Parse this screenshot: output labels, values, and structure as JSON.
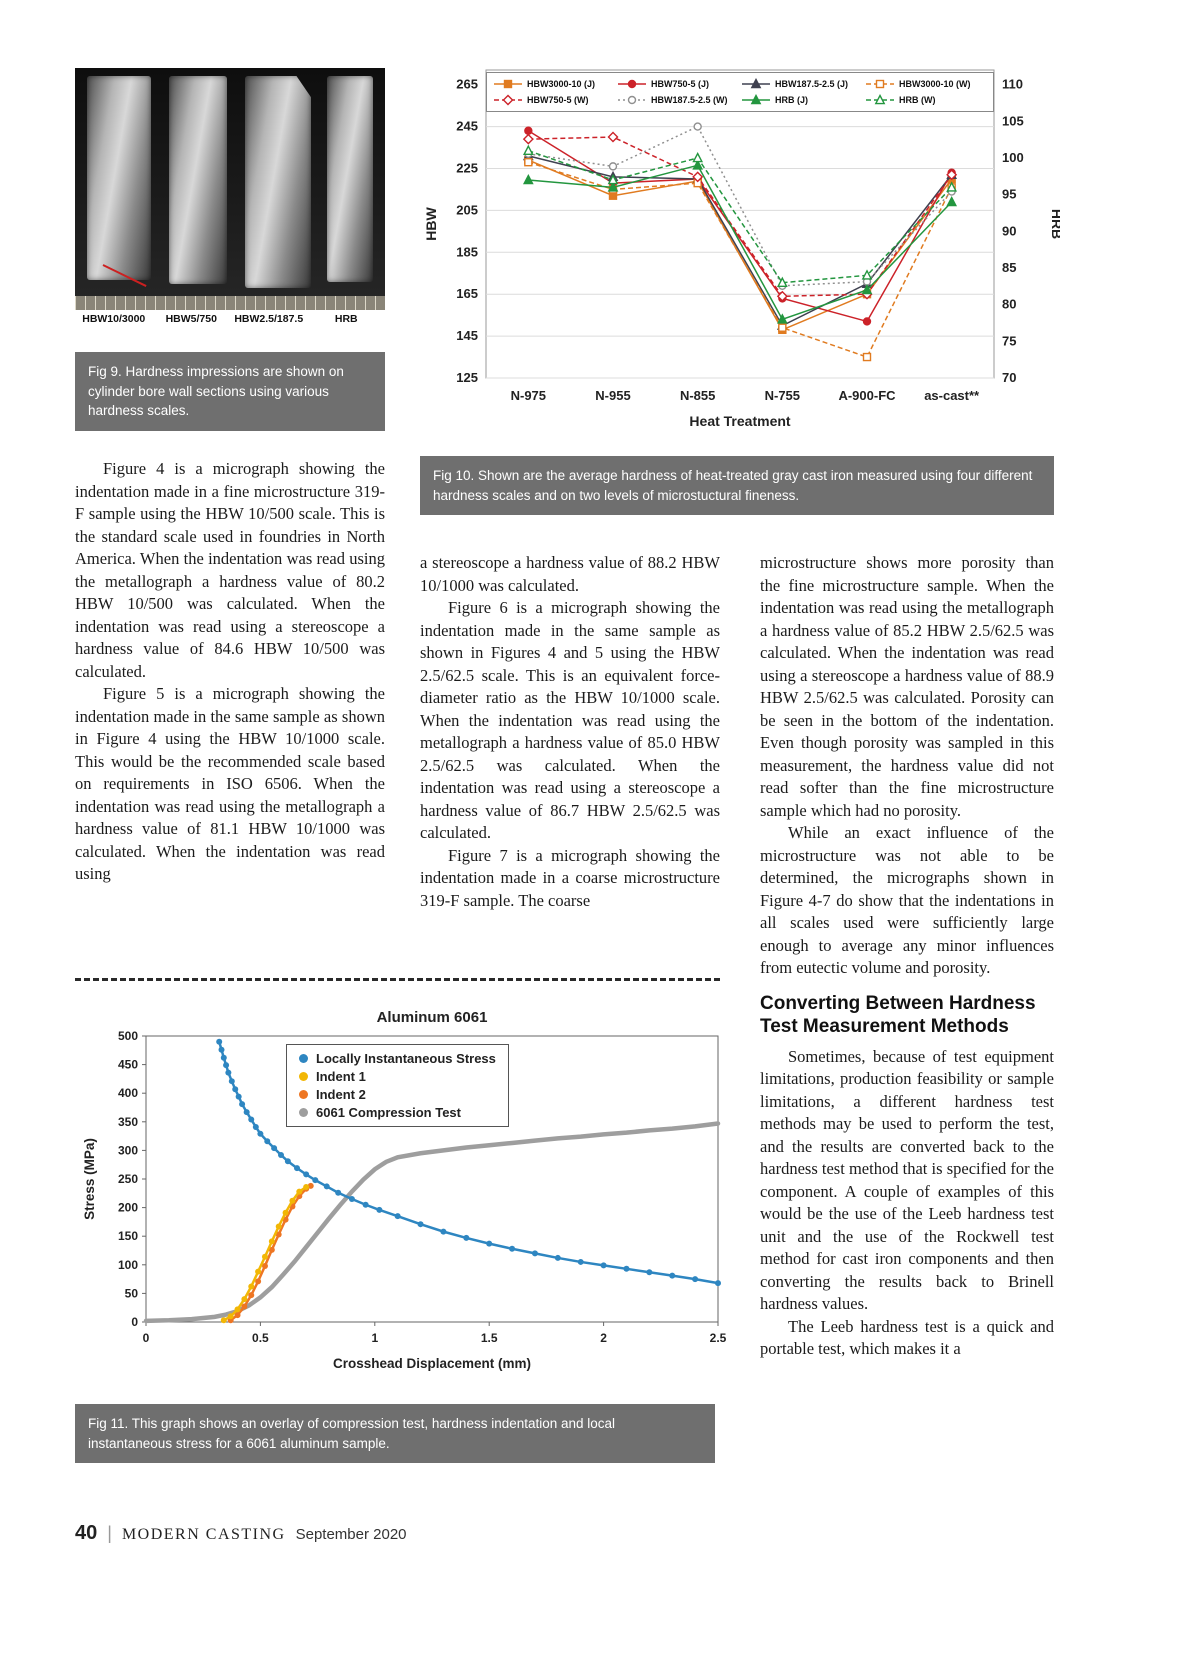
{
  "page": {
    "footer_page": "40",
    "footer_bar": "|",
    "footer_title": "MODERN CASTING",
    "footer_date": "September 2020"
  },
  "fig9": {
    "caption": "Fig 9. Hardness impressions are shown on cylinder bore wall sections using various hardness scales.",
    "labels": [
      "HBW10/3000",
      "HBW5/750",
      "HBW2.5/187.5",
      "HRB"
    ]
  },
  "fig10": {
    "caption": "Fig 10. Shown are the average hardness of heat-treated gray cast iron measured using four different hardness scales and on two levels of microstuctural fineness."
  },
  "fig11": {
    "caption": "Fig 11. This graph shows an overlay of compression test, hardness indentation and local instantaneous stress for a 6061 aluminum sample."
  },
  "article": {
    "col1": [
      {
        "indent": true,
        "text": "Figure 4 is a micrograph showing the indentation made in a fine microstructure 319-F sample using the HBW 10/500 scale. This is the standard scale used in foundries in North America. When the indentation was read using the metallograph a hardness value of 80.2 HBW 10/500 was calculated. When the indentation was read using a stereoscope a hardness value of 84.6 HBW 10/500 was calculated."
      },
      {
        "indent": true,
        "text": "Figure 5 is a micrograph showing the indentation made in the same sample as shown in Figure 4 using the HBW 10/1000 scale. This would be the recommended scale based on requirements in ISO 6506. When the indentation was read using the metallograph a hardness value of 81.1 HBW 10/1000 was calculated. When the indentation was read using"
      }
    ],
    "col2": [
      {
        "indent": false,
        "text": "a stereoscope a hardness value of 88.2 HBW 10/1000 was calculated."
      },
      {
        "indent": true,
        "text": "Figure 6 is a micrograph showing the indentation made in the same sample as shown in Figures 4 and 5 using the HBW 2.5/62.5 scale. This is an equivalent force-diameter ratio as the HBW 10/1000 scale. When the indentation was read using the metallograph a hardness value of 85.0 HBW 2.5/62.5 was calculated. When the indentation was read using a stereoscope a hardness value of 86.7 HBW 2.5/62.5 was calculated."
      },
      {
        "indent": true,
        "text": "Figure 7 is a micrograph showing the indentation made in a coarse microstructure 319-F sample. The coarse"
      }
    ],
    "col3_before_heading": [
      {
        "indent": false,
        "text": "microstructure shows more porosity than the fine microstructure sample. When the indentation was read using the metallograph a hardness value of 85.2 HBW 2.5/62.5 was calculated. When the indentation was read using a stereoscope a hardness value of 88.9 HBW 2.5/62.5 was calculated. Porosity can be seen in the bottom of the indentation. Even though porosity was sampled in this measurement, the hardness value did not read softer than the fine microstructure sample which had no porosity."
      },
      {
        "indent": true,
        "text": "While an exact influence of the microstructure was not able to be determined, the micrographs shown in Figure 4-7 do show that the indentations in all scales used were sufficiently large enough to average any minor influences from eutectic volume and porosity."
      }
    ],
    "heading": "Converting Between Hardness Test Measurement Methods",
    "col3_after_heading": [
      {
        "indent": true,
        "text": "Sometimes, because of test equipment limitations, production feasibility or sample limitations, a different hardness test methods may be used to perform the test, and the results are converted back to the hardness test method that is specified for the component. A couple of examples of this would be the use of the Leeb hardness test unit and the use of the Rockwell test method for cast iron components and then converting the results back to Brinell hardness values."
      },
      {
        "indent": true,
        "text": "The Leeb hardness test is a quick and portable test, which makes it a"
      }
    ]
  },
  "chart_data": [
    {
      "type": "line",
      "title": "",
      "xlabel": "Heat Treatment",
      "ylabel_left": "HBW",
      "ylabel_right": "HRB",
      "categories": [
        "N-975",
        "N-955",
        "N-855",
        "N-755",
        "A-900-FC",
        "as-cast**"
      ],
      "ylim_left": [
        125,
        272
      ],
      "ylim_right": [
        70,
        112
      ],
      "y_left_ticks": [
        125,
        145,
        165,
        185,
        205,
        225,
        245,
        265
      ],
      "y_right_ticks": [
        70,
        75,
        80,
        85,
        90,
        95,
        100,
        105,
        110
      ],
      "grid": true,
      "legend_position": "top",
      "series": [
        {
          "name": "HBW3000-10 (J)",
          "axis": "left",
          "color": "#e07b20",
          "marker": "square",
          "open": false,
          "dash": "",
          "values": [
            229,
            212,
            219,
            148,
            165,
            220
          ]
        },
        {
          "name": "HBW750-5 (J)",
          "axis": "left",
          "color": "#cc2229",
          "marker": "circle",
          "open": false,
          "dash": "",
          "values": [
            243,
            218,
            220,
            163,
            152,
            223
          ]
        },
        {
          "name": "HBW187.5-2.5 (J)",
          "axis": "left",
          "color": "#3f4150",
          "marker": "triangle",
          "open": false,
          "dash": "",
          "values": [
            231,
            221,
            220,
            150,
            170,
            222
          ]
        },
        {
          "name": "HBW3000-10 (W)",
          "axis": "left",
          "color": "#e07b20",
          "marker": "square",
          "open": true,
          "dash": "5,3",
          "values": [
            228,
            215,
            218,
            149,
            135,
            216
          ]
        },
        {
          "name": "HBW750-5 (W)",
          "axis": "left",
          "color": "#cc2229",
          "marker": "diamond",
          "open": true,
          "dash": "5,3",
          "values": [
            239,
            240,
            221,
            164,
            165,
            222
          ]
        },
        {
          "name": "HBW187.5-2.5 (W)",
          "axis": "left",
          "color": "#8f8f8f",
          "marker": "circle",
          "open": true,
          "dash": "2,3",
          "values": [
            232,
            226,
            245,
            169,
            171,
            214
          ]
        },
        {
          "name": "HRB (J)",
          "axis": "right",
          "color": "#23963f",
          "marker": "triangle",
          "open": false,
          "dash": "",
          "values": [
            97,
            96,
            99,
            78,
            82,
            94
          ]
        },
        {
          "name": "HRB (W)",
          "axis": "right",
          "color": "#23963f",
          "marker": "triangle",
          "open": true,
          "dash": "5,3",
          "values": [
            101,
            97,
            100,
            83,
            84,
            96
          ]
        }
      ]
    },
    {
      "type": "scatter",
      "title": "Aluminum 6061",
      "xlabel": "Crosshead Displacement (mm)",
      "ylabel": "Stress (MPa)",
      "xlim": [
        0,
        2.5
      ],
      "ylim": [
        0,
        500
      ],
      "y_ticks": [
        0,
        50,
        100,
        150,
        200,
        250,
        300,
        350,
        400,
        450,
        500
      ],
      "x_tick_vals": [
        0,
        0.5,
        1,
        1.5,
        2,
        2.5
      ],
      "x_ticks": [
        "0",
        "0.5",
        "1",
        "1.5",
        "2",
        "2.5"
      ],
      "grid": false,
      "legend_position": "top-center",
      "series": [
        {
          "name": "Locally Instantaneous Stress",
          "color": "#2e86c1",
          "style": "dots",
          "points": [
            [
              0.32,
              490
            ],
            [
              0.33,
              476
            ],
            [
              0.34,
              462
            ],
            [
              0.35,
              449
            ],
            [
              0.36,
              436
            ],
            [
              0.375,
              421
            ],
            [
              0.39,
              407
            ],
            [
              0.405,
              394
            ],
            [
              0.42,
              381
            ],
            [
              0.44,
              367
            ],
            [
              0.46,
              354
            ],
            [
              0.48,
              341
            ],
            [
              0.5,
              329
            ],
            [
              0.53,
              316
            ],
            [
              0.56,
              304
            ],
            [
              0.59,
              292
            ],
            [
              0.62,
              281
            ],
            [
              0.66,
              269
            ],
            [
              0.7,
              258
            ],
            [
              0.74,
              248
            ],
            [
              0.79,
              237
            ],
            [
              0.84,
              226
            ],
            [
              0.9,
              215
            ],
            [
              0.96,
              205
            ],
            [
              1.02,
              196
            ],
            [
              1.1,
              185
            ],
            [
              1.2,
              171
            ],
            [
              1.3,
              158
            ],
            [
              1.4,
              147
            ],
            [
              1.5,
              137
            ],
            [
              1.6,
              128
            ],
            [
              1.7,
              120
            ],
            [
              1.8,
              112
            ],
            [
              1.9,
              105
            ],
            [
              2.0,
              99
            ],
            [
              2.1,
              93
            ],
            [
              2.2,
              87
            ],
            [
              2.3,
              81
            ],
            [
              2.4,
              75
            ],
            [
              2.5,
              68
            ]
          ]
        },
        {
          "name": "Indent 1",
          "color": "#f2b705",
          "style": "dots",
          "points": [
            [
              0.34,
              3
            ],
            [
              0.37,
              10
            ],
            [
              0.4,
              22
            ],
            [
              0.43,
              40
            ],
            [
              0.46,
              62
            ],
            [
              0.49,
              88
            ],
            [
              0.52,
              114
            ],
            [
              0.55,
              141
            ],
            [
              0.58,
              167
            ],
            [
              0.61,
              191
            ],
            [
              0.64,
              212
            ],
            [
              0.67,
              228
            ],
            [
              0.7,
              236
            ]
          ]
        },
        {
          "name": "Indent 2",
          "color": "#ee7623",
          "style": "dots",
          "points": [
            [
              0.37,
              3
            ],
            [
              0.4,
              12
            ],
            [
              0.43,
              27
            ],
            [
              0.46,
              47
            ],
            [
              0.49,
              71
            ],
            [
              0.52,
              98
            ],
            [
              0.55,
              126
            ],
            [
              0.58,
              153
            ],
            [
              0.61,
              179
            ],
            [
              0.64,
              202
            ],
            [
              0.67,
              220
            ],
            [
              0.7,
              233
            ],
            [
              0.72,
              238
            ]
          ]
        },
        {
          "name": "6061 Compression Test",
          "color": "#9e9e9e",
          "style": "thick",
          "points": [
            [
              0,
              2
            ],
            [
              0.1,
              3
            ],
            [
              0.2,
              5
            ],
            [
              0.3,
              9
            ],
            [
              0.35,
              13
            ],
            [
              0.4,
              19
            ],
            [
              0.45,
              29
            ],
            [
              0.5,
              43
            ],
            [
              0.55,
              61
            ],
            [
              0.6,
              83
            ],
            [
              0.65,
              106
            ],
            [
              0.7,
              131
            ],
            [
              0.75,
              156
            ],
            [
              0.8,
              181
            ],
            [
              0.85,
              205
            ],
            [
              0.9,
              228
            ],
            [
              0.95,
              249
            ],
            [
              1.0,
              267
            ],
            [
              1.05,
              280
            ],
            [
              1.1,
              288
            ],
            [
              1.2,
              295
            ],
            [
              1.3,
              300
            ],
            [
              1.4,
              305
            ],
            [
              1.5,
              309
            ],
            [
              1.6,
              313
            ],
            [
              1.7,
              317
            ],
            [
              1.8,
              321
            ],
            [
              1.9,
              324
            ],
            [
              2.0,
              328
            ],
            [
              2.1,
              331
            ],
            [
              2.2,
              335
            ],
            [
              2.3,
              338
            ],
            [
              2.4,
              342
            ],
            [
              2.5,
              347
            ]
          ]
        }
      ]
    }
  ]
}
